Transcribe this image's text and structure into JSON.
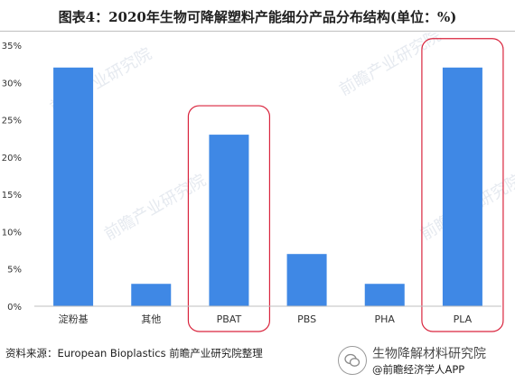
{
  "title": "图表4：2020年生物可降解塑料产能细分产品分布结构(单位：%)",
  "source": "资料来源：European Bioplastics 前瞻产业研究院整理",
  "watermark": {
    "logo_text": "前瞻产业研究院",
    "badge_line1": "生物降解材料研究院",
    "badge_line2": "@前瞻经济学人APP"
  },
  "colors": {
    "bar": "#3f88e5",
    "highlight": "#d9243d",
    "axis": "#bfbfbf"
  },
  "chart_data": {
    "type": "bar",
    "categories": [
      "淀粉基",
      "其他",
      "PBAT",
      "PBS",
      "PHA",
      "PLA"
    ],
    "values": [
      32,
      3,
      23,
      7,
      3,
      32
    ],
    "yticks": [
      "0%",
      "5%",
      "10%",
      "15%",
      "20%",
      "25%",
      "30%",
      "35%"
    ],
    "ylim": [
      0,
      35
    ],
    "xlabel": "",
    "ylabel": "",
    "grid": false,
    "highlighted": [
      "PBAT",
      "PLA"
    ]
  }
}
